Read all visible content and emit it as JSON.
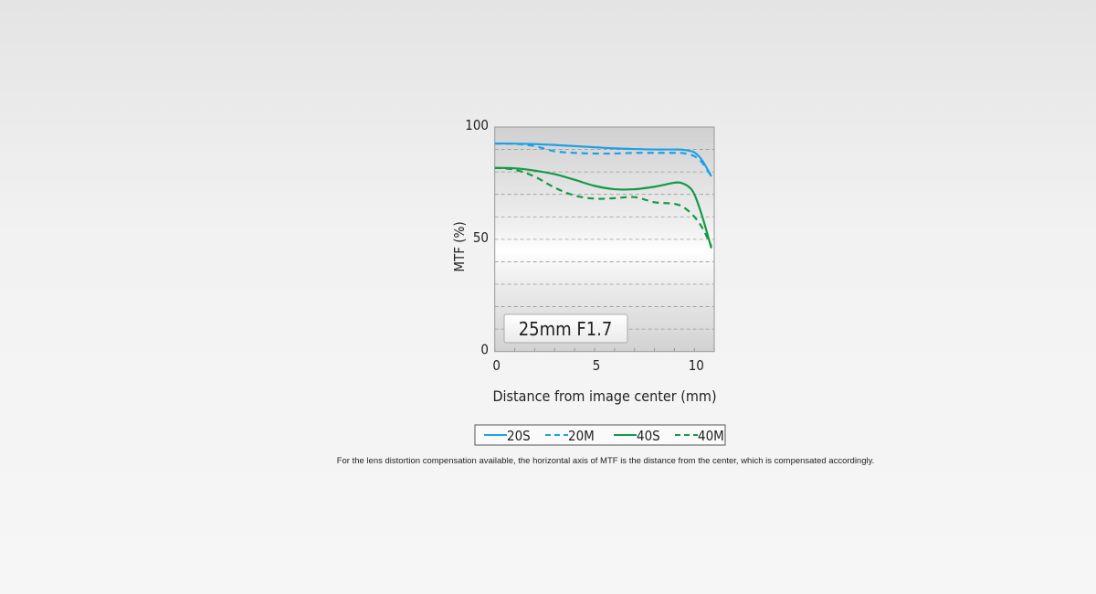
{
  "chart_data": {
    "type": "line",
    "title": "",
    "xlabel": "Distance from image center (mm)",
    "ylabel": "MTF (%)",
    "xlim": [
      0,
      11
    ],
    "ylim": [
      0,
      100
    ],
    "xticks": [
      0,
      5,
      10
    ],
    "yticks": [
      0,
      50,
      100
    ],
    "grid": "horizontal dashed every 10",
    "annotation": "25mm F1.7",
    "legend_placement": "bottom",
    "series": [
      {
        "name": "20S",
        "color": "#1ea0e6",
        "dash": false,
        "x": [
          0,
          1,
          2,
          3,
          4,
          5,
          6,
          7,
          8,
          9,
          9.5,
          10,
          10.4,
          10.85
        ],
        "y": [
          92.7,
          92.6,
          92.4,
          92,
          91.5,
          91,
          90.5,
          90.2,
          90,
          90,
          89.8,
          88.7,
          85,
          78
        ]
      },
      {
        "name": "20M",
        "color": "#1ea0e6",
        "dash": true,
        "x": [
          0,
          1,
          2,
          3,
          4,
          5,
          6,
          7,
          8,
          9,
          9.5,
          10,
          10.4,
          10.85
        ],
        "y": [
          92.6,
          92.5,
          91.5,
          89.2,
          88.5,
          88.2,
          88.2,
          88.5,
          88.5,
          88.5,
          88.3,
          87,
          84,
          78
        ]
      },
      {
        "name": "40S",
        "color": "#139a46",
        "dash": false,
        "x": [
          0,
          1,
          2,
          3,
          4,
          5,
          6,
          7,
          8,
          8.6,
          9,
          9.3,
          9.7,
          10,
          10.4,
          10.85
        ],
        "y": [
          81.8,
          81.6,
          80.6,
          79,
          76.5,
          73.8,
          72.3,
          72.3,
          73.4,
          74.5,
          75.2,
          75.2,
          73.5,
          70,
          60,
          46
        ]
      },
      {
        "name": "40M",
        "color": "#139a46",
        "dash": true,
        "x": [
          0,
          1,
          2,
          3,
          4,
          5,
          6,
          7,
          8,
          9,
          9.5,
          10,
          10.4,
          10.85
        ],
        "y": [
          81.8,
          81,
          77.9,
          73,
          69.5,
          68.1,
          68.3,
          68.8,
          66.5,
          65.8,
          64,
          60,
          55,
          47
        ]
      }
    ]
  },
  "footnote": "For the lens distortion compensation available, the horizontal axis of MTF is the distance from the center, which is compensated accordingly."
}
